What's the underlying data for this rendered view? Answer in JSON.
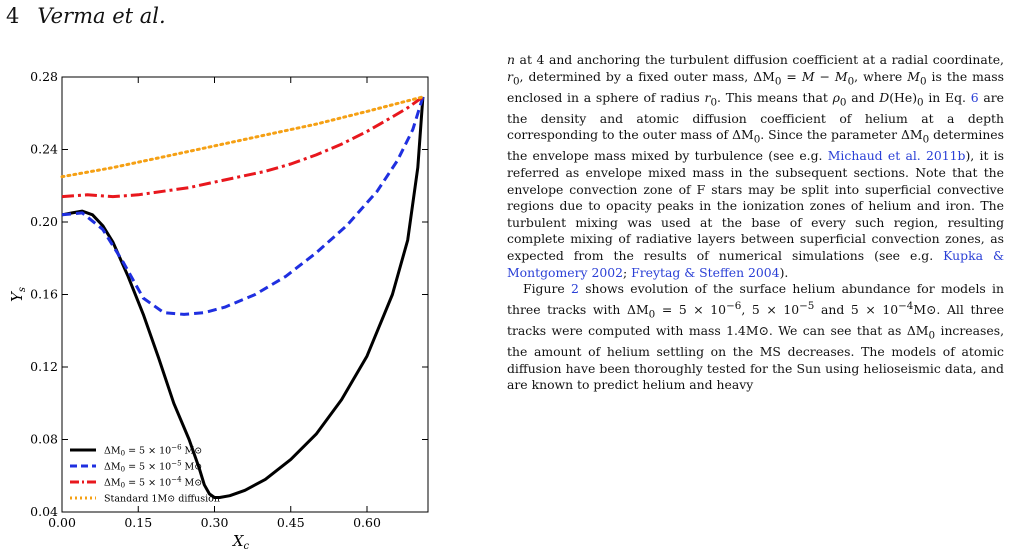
{
  "header": {
    "page_number": "4",
    "running_head": "Verma et al."
  },
  "chart_data": {
    "type": "line",
    "xlabel": "X_c",
    "ylabel": "Y_s",
    "xlim": [
      0.0,
      0.72
    ],
    "ylim": [
      0.04,
      0.28
    ],
    "xticks": [
      "0.00",
      "0.15",
      "0.30",
      "0.45",
      "0.60"
    ],
    "yticks": [
      "0.04",
      "0.08",
      "0.12",
      "0.16",
      "0.20",
      "0.24",
      "0.28"
    ],
    "grid": false,
    "legend": "bottom-left",
    "series": [
      {
        "name": "ΔM0 = 5 × 10^-6 M⊙",
        "color": "#000000",
        "style": "solid",
        "x": [
          0.0,
          0.02,
          0.04,
          0.06,
          0.08,
          0.1,
          0.13,
          0.16,
          0.19,
          0.22,
          0.25,
          0.27,
          0.28,
          0.29,
          0.3,
          0.31,
          0.33,
          0.36,
          0.4,
          0.45,
          0.5,
          0.55,
          0.6,
          0.65,
          0.68,
          0.7,
          0.71
        ],
        "y": [
          0.204,
          0.205,
          0.206,
          0.204,
          0.198,
          0.189,
          0.17,
          0.149,
          0.125,
          0.1,
          0.08,
          0.064,
          0.055,
          0.05,
          0.048,
          0.048,
          0.049,
          0.052,
          0.058,
          0.069,
          0.083,
          0.102,
          0.126,
          0.16,
          0.19,
          0.23,
          0.269
        ]
      },
      {
        "name": "ΔM0 = 5 × 10^-5 M⊙",
        "color": "#1f2fe0",
        "style": "dashed",
        "x": [
          0.0,
          0.04,
          0.08,
          0.12,
          0.16,
          0.2,
          0.24,
          0.28,
          0.32,
          0.38,
          0.44,
          0.5,
          0.56,
          0.62,
          0.66,
          0.69,
          0.71
        ],
        "y": [
          0.204,
          0.205,
          0.196,
          0.178,
          0.158,
          0.15,
          0.149,
          0.15,
          0.153,
          0.16,
          0.17,
          0.183,
          0.198,
          0.217,
          0.234,
          0.251,
          0.269
        ]
      },
      {
        "name": "ΔM0 = 5 × 10^-4 M⊙",
        "color": "#e8171d",
        "style": "dashdot",
        "x": [
          0.0,
          0.05,
          0.1,
          0.15,
          0.2,
          0.25,
          0.3,
          0.35,
          0.4,
          0.45,
          0.5,
          0.55,
          0.6,
          0.65,
          0.68,
          0.71
        ],
        "y": [
          0.214,
          0.215,
          0.214,
          0.215,
          0.217,
          0.219,
          0.222,
          0.225,
          0.228,
          0.232,
          0.237,
          0.243,
          0.25,
          0.258,
          0.263,
          0.269
        ]
      },
      {
        "name": "Standard 1M⊙ diffusion",
        "color": "#f5a014",
        "style": "dotted",
        "x": [
          0.0,
          0.1,
          0.2,
          0.3,
          0.4,
          0.5,
          0.6,
          0.71
        ],
        "y": [
          0.225,
          0.23,
          0.236,
          0.242,
          0.248,
          0.254,
          0.261,
          0.269
        ]
      }
    ]
  },
  "legend_display": [
    {
      "pre": "ΔM",
      "sub": "0",
      "mid": " = 5 × 10",
      "sup": "−6",
      "post": " M⊙"
    },
    {
      "pre": "ΔM",
      "sub": "0",
      "mid": " = 5 × 10",
      "sup": "−5",
      "post": " M⊙"
    },
    {
      "pre": "ΔM",
      "sub": "0",
      "mid": " = 5 × 10",
      "sup": "−4",
      "post": " M⊙"
    },
    {
      "pre": "Standard 1M⊙ diffusion",
      "sub": "",
      "mid": "",
      "sup": "",
      "post": ""
    }
  ],
  "text": {
    "p1": {
      "a": "n",
      "b": " at 4 and anchoring the turbulent diffusion coefficient at a radial coordinate, ",
      "c": "r",
      "c_sub": "0",
      "d": ", determined by a fixed outer mass, ΔM",
      "d_sub": "0",
      "e": " = ",
      "f": "M",
      "g": " − ",
      "h": "M",
      "h_sub": "0",
      "i": ", where ",
      "j": "M",
      "j_sub": "0",
      "k": " is the mass enclosed in a sphere of radius ",
      "l": "r",
      "l_sub": "0",
      "m": ". This means that ",
      "n2": "ρ",
      "n2_sub": "0",
      "o": " and ",
      "p": "D",
      "q": "(He)",
      "q_sub": "0",
      "r": " in Eq. ",
      "eq_ref": "6",
      "s": " are the density and atomic diffusion coefficient of helium at a depth corresponding to the outer mass of ΔM",
      "s_sub": "0",
      "t": ". Since the parameter ΔM",
      "t_sub": "0",
      "u": " determines the envelope mass mixed by turbulence (see e.g. ",
      "cite1": "Michaud et al. 2011b",
      "v": "), it is referred as envelope mixed mass in the subsequent sections. Note that the envelope convection zone of F stars may be split into superficial convective regions due to opacity peaks in the ionization zones of helium and iron. The turbulent mixing was used at the base of every such region, resulting complete mixing of radiative layers between superficial convection zones, as expected from the results of numerical simulations (see e.g. ",
      "cite2": "Kupka & Montgomery 2002",
      "w": "; ",
      "cite3": "Freytag & Steffen 2004",
      "x": ")."
    },
    "p2": {
      "a": "Figure ",
      "fig_ref": "2",
      "b": " shows evolution of the surface helium abundance for models in three tracks with ΔM",
      "b_sub": "0",
      "c": " = 5 × 10",
      "c_sup": "−6",
      "d": ", 5 × 10",
      "d_sup": "−5",
      "e": " and 5 × 10",
      "e_sup": "−4",
      "f": "M⊙. All three tracks were computed with mass 1.4M⊙. We can see that as ΔM",
      "f_sub": "0",
      "g": " increases, the amount of helium settling on the MS decreases. The models of atomic diffusion have been thoroughly tested for the Sun using helioseismic data, and are known to predict helium and heavy"
    }
  }
}
